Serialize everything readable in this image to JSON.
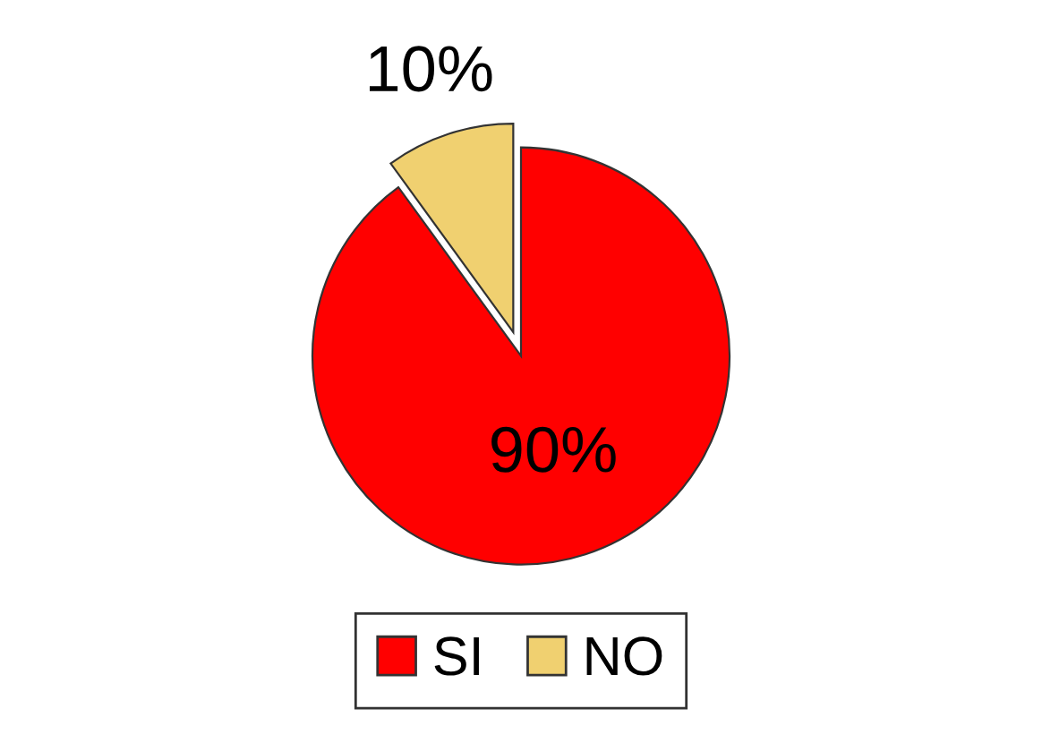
{
  "chart_data": {
    "type": "pie",
    "categories": [
      "SI",
      "NO"
    ],
    "values": [
      90,
      10
    ],
    "colors": [
      "#ff0000",
      "#f0d070"
    ],
    "value_labels": [
      "90%",
      "10%"
    ],
    "legend": "bottom"
  }
}
